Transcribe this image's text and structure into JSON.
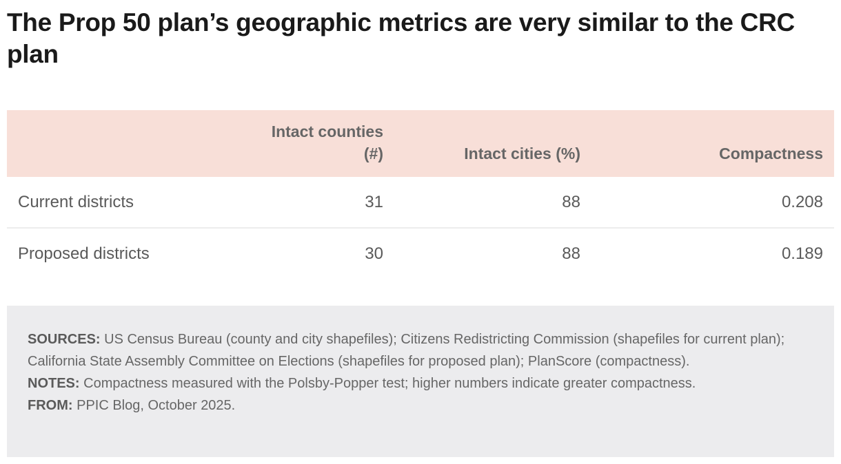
{
  "title": "The Prop 50 plan’s geographic metrics are very similar to the CRC plan",
  "chart_data": {
    "type": "table",
    "columns": [
      "",
      "Intact counties (#)",
      "Intact cities (%)",
      "Compactness"
    ],
    "header_lines": [
      [
        ""
      ],
      [
        "Intact counties",
        "(#)"
      ],
      [
        "Intact cities (%)"
      ],
      [
        "Compactness"
      ]
    ],
    "rows": [
      [
        "Current districts",
        "31",
        "88",
        "0.208"
      ],
      [
        "Proposed districts",
        "30",
        "88",
        "0.189"
      ]
    ]
  },
  "footnotes": {
    "sources_label": "SOURCES:",
    "sources_text": "US Census Bureau (county and city shapefiles); Citizens Redistricting Commission (shapefiles for current plan); California State Assembly Committee on Elections (shapefiles for proposed plan); PlanScore (compactness).",
    "notes_label": "NOTES:",
    "notes_text": "Compactness measured with the Polsby-Popper test; higher numbers indicate greater compactness.",
    "from_label": "FROM:",
    "from_text": "PPIC Blog, October 2025."
  },
  "colors": {
    "header_bg": "#f8dfd8",
    "notes_bg": "#ececee"
  }
}
